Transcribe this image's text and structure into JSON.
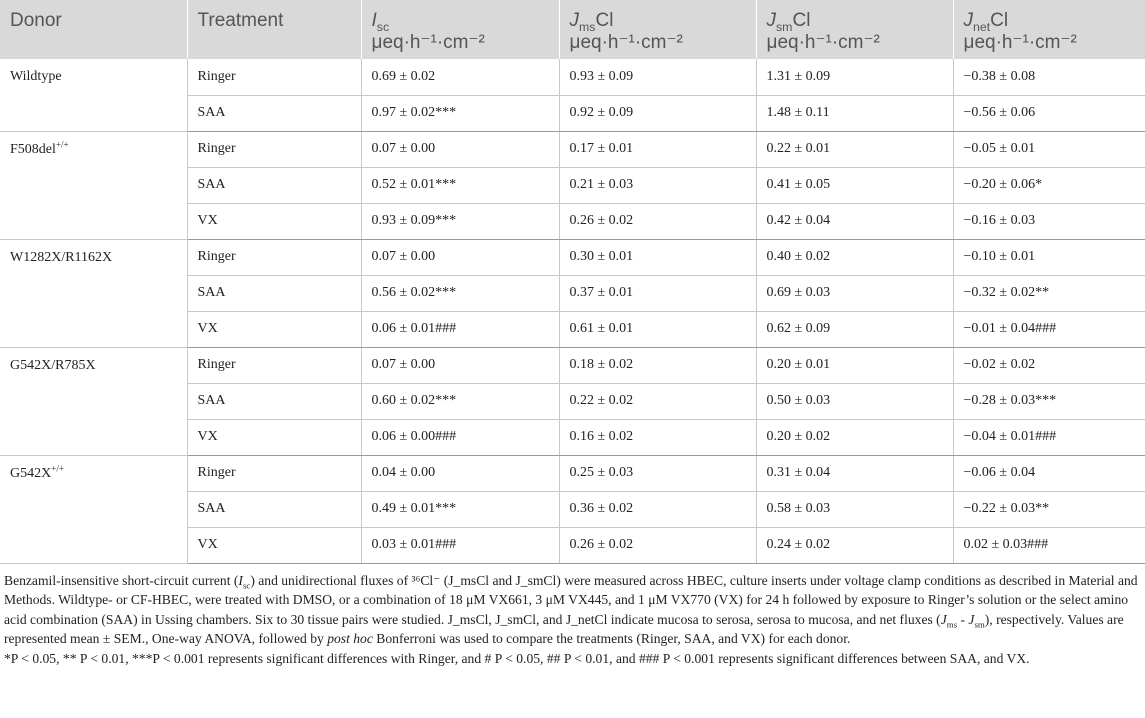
{
  "header": {
    "donor": "Donor",
    "treatment": "Treatment",
    "isc": {
      "main": "I",
      "sub": "sc",
      "unit": "μeq·h⁻¹·cm⁻²"
    },
    "jms": {
      "main": "J",
      "sub": "ms",
      "suffix": "Cl",
      "unit": "μeq·h⁻¹·cm⁻²"
    },
    "jsm": {
      "main": "J",
      "sub": "sm",
      "suffix": "Cl",
      "unit": "μeq·h⁻¹·cm⁻²"
    },
    "jnet": {
      "main": "J",
      "sub": "net",
      "suffix": "Cl",
      "unit": "μeq·h⁻¹·cm⁻²"
    }
  },
  "groups": [
    {
      "donor": "Wildtype",
      "donor_sup": "",
      "rows": [
        {
          "treatment": "Ringer",
          "isc": "0.69 ± 0.02",
          "jms": "0.93 ± 0.09",
          "jsm": "1.31 ± 0.09",
          "jnet": "−0.38 ± 0.08"
        },
        {
          "treatment": "SAA",
          "isc": "0.97 ± 0.02***",
          "jms": "0.92 ± 0.09",
          "jsm": "1.48 ± 0.11",
          "jnet": "−0.56 ± 0.06"
        }
      ]
    },
    {
      "donor": "F508del",
      "donor_sup": "+/+",
      "rows": [
        {
          "treatment": "Ringer",
          "isc": "0.07 ± 0.00",
          "jms": "0.17 ± 0.01",
          "jsm": "0.22 ± 0.01",
          "jnet": "−0.05 ± 0.01"
        },
        {
          "treatment": "SAA",
          "isc": "0.52 ± 0.01***",
          "jms": "0.21 ± 0.03",
          "jsm": "0.41 ± 0.05",
          "jnet": "−0.20 ± 0.06*"
        },
        {
          "treatment": "VX",
          "isc": "0.93 ± 0.09***",
          "jms": "0.26 ± 0.02",
          "jsm": "0.42 ± 0.04",
          "jnet": "−0.16 ± 0.03"
        }
      ]
    },
    {
      "donor": "W1282X/R1162X",
      "donor_sup": "",
      "rows": [
        {
          "treatment": "Ringer",
          "isc": "0.07 ± 0.00",
          "jms": "0.30 ± 0.01",
          "jsm": "0.40 ± 0.02",
          "jnet": "−0.10 ± 0.01"
        },
        {
          "treatment": "SAA",
          "isc": "0.56 ± 0.02***",
          "jms": "0.37 ± 0.01",
          "jsm": "0.69 ± 0.03",
          "jnet": "−0.32 ± 0.02**"
        },
        {
          "treatment": "VX",
          "isc": "0.06 ± 0.01###",
          "jms": "0.61 ± 0.01",
          "jsm": "0.62 ± 0.09",
          "jnet": "−0.01 ± 0.04###"
        }
      ]
    },
    {
      "donor": "G542X/R785X",
      "donor_sup": "",
      "rows": [
        {
          "treatment": "Ringer",
          "isc": "0.07 ± 0.00",
          "jms": "0.18 ± 0.02",
          "jsm": "0.20 ± 0.01",
          "jnet": "−0.02 ± 0.02"
        },
        {
          "treatment": "SAA",
          "isc": "0.60 ± 0.02***",
          "jms": "0.22 ± 0.02",
          "jsm": "0.50 ± 0.03",
          "jnet": "−0.28 ± 0.03***"
        },
        {
          "treatment": "VX",
          "isc": "0.06 ± 0.00###",
          "jms": "0.16 ± 0.02",
          "jsm": "0.20 ± 0.02",
          "jnet": "−0.04 ± 0.01###"
        }
      ]
    },
    {
      "donor": "G542X",
      "donor_sup": "+/+",
      "rows": [
        {
          "treatment": "Ringer",
          "isc": "0.04 ± 0.00",
          "jms": "0.25 ± 0.03",
          "jsm": "0.31 ± 0.04",
          "jnet": "−0.06 ± 0.04"
        },
        {
          "treatment": "SAA",
          "isc": "0.49 ± 0.01***",
          "jms": "0.36 ± 0.02",
          "jsm": "0.58 ± 0.03",
          "jnet": "−0.22 ± 0.03**"
        },
        {
          "treatment": "VX",
          "isc": "0.03 ± 0.01###",
          "jms": "0.26 ± 0.02",
          "jsm": "0.24 ± 0.02",
          "jnet": "0.02 ± 0.03###"
        }
      ]
    }
  ],
  "footnote": [
    "Benzamil-insensitive short-circuit current (I_sc) and unidirectional fluxes of ³⁶Cl⁻ (J_msCl and J_smCl) were measured across HBEC, culture inserts under voltage clamp conditions as described in Material and Methods. Wildtype- or CF-HBEC, were treated with DMSO, or a combination of 18 μM VX661, 3 μM VX445, and 1 μM VX770 (VX) for 24 h followed by exposure to Ringer’s solution or the select amino acid combination (SAA) in Ussing chambers. Six to 30 tissue pairs were studied. J_msCl, J_smCl, and J_netCl indicate mucosa to serosa, serosa to mucosa, and net fluxes (J_ms - J_sm), respectively. Values are represented mean ± SEM., One-way ANOVA, followed by post hoc Bonferroni was used to compare the treatments (Ringer, SAA, and VX) for each donor.",
    "*P < 0.05, ** P < 0.01, ***P < 0.001 represents significant differences with Ringer, and # P < 0.05, ## P < 0.01, and ### P < 0.001 represents significant differences between SAA, and VX."
  ]
}
